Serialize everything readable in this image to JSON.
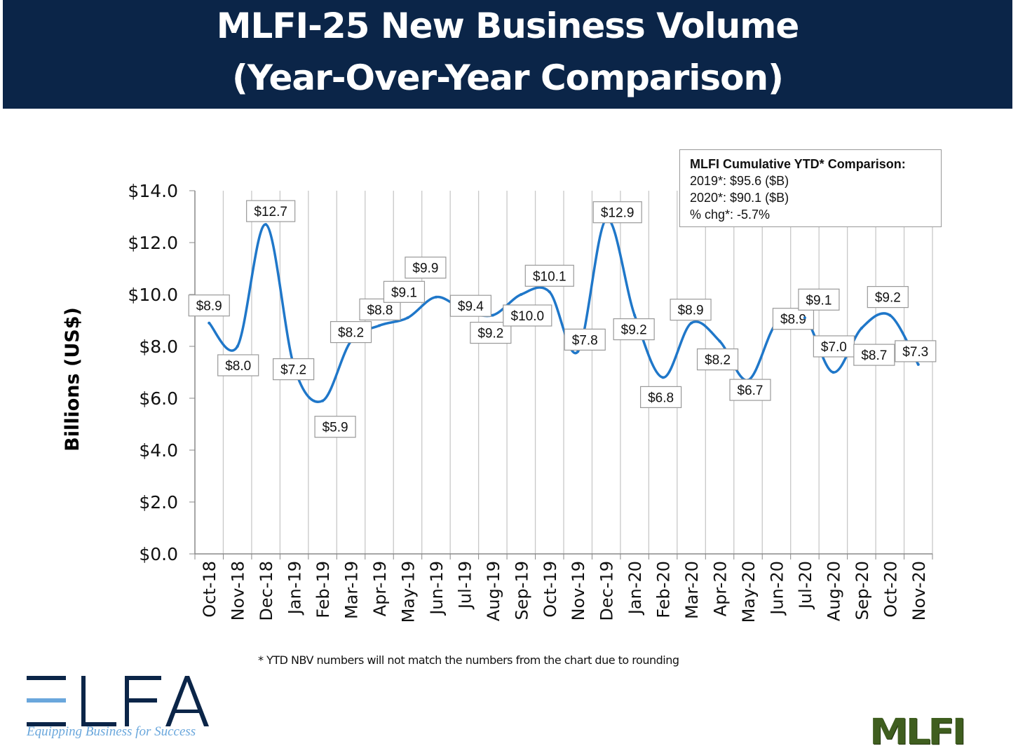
{
  "title": {
    "line1": "MLFI-25 New Business Volume",
    "line2": "(Year-Over-Year Comparison)"
  },
  "ytd_box": {
    "heading": "MLFI Cumulative YTD* Comparison:",
    "line1": "2019*: $95.6 ($B)",
    "line2": "2020*: $90.1 ($B)",
    "line3": "% chg*:  -5.7%"
  },
  "footnote": "*  YTD NBV numbers will not match the numbers from the chart due to rounding",
  "logos": {
    "elfa": "ELFA",
    "elfa_tagline": "Equipping Business for Success",
    "mlfi": "MLFI"
  },
  "chart_data": {
    "type": "line",
    "ylabel": "Billions (US$)",
    "ylim": [
      0,
      14
    ],
    "yticks": [
      0,
      2,
      4,
      6,
      8,
      10,
      12,
      14
    ],
    "ytick_labels": [
      "$0.0",
      "$2.0",
      "$4.0",
      "$6.0",
      "$8.0",
      "$10.0",
      "$12.0",
      "$14.0"
    ],
    "grid": "vertical",
    "smooth": true,
    "line_color": "#1f77c9",
    "categories": [
      "Oct-18",
      "Nov-18",
      "Dec-18",
      "Jan-19",
      "Feb-19",
      "Mar-19",
      "Apr-19",
      "May-19",
      "Jun-19",
      "Jul-19",
      "Aug-19",
      "Sep-19",
      "Oct-19",
      "Nov-19",
      "Dec-19",
      "Jan-20",
      "Feb-20",
      "Mar-20",
      "Apr-20",
      "May-20",
      "Jun-20",
      "Jul-20",
      "Aug-20",
      "Sep-20",
      "Oct-20",
      "Nov-20"
    ],
    "values": [
      8.9,
      8.0,
      12.7,
      7.2,
      5.9,
      8.2,
      8.8,
      9.1,
      9.9,
      9.4,
      9.2,
      10.0,
      10.1,
      7.8,
      12.9,
      9.2,
      6.8,
      8.9,
      8.2,
      6.7,
      8.9,
      9.1,
      7.0,
      8.7,
      9.2,
      7.3
    ],
    "data_labels": [
      "$8.9",
      "$8.0",
      "$12.7",
      "$7.2",
      "$5.9",
      "$8.2",
      "$8.8",
      "$9.1",
      "$9.9",
      "$9.4",
      "$9.2",
      "$10.0",
      "$10.1",
      "$7.8",
      "$12.9",
      "$9.2",
      "$6.8",
      "$8.9",
      "$8.2",
      "$6.7",
      "$8.9",
      "$9.1",
      "$7.0",
      "$8.7",
      "$9.2",
      "$7.3"
    ]
  }
}
